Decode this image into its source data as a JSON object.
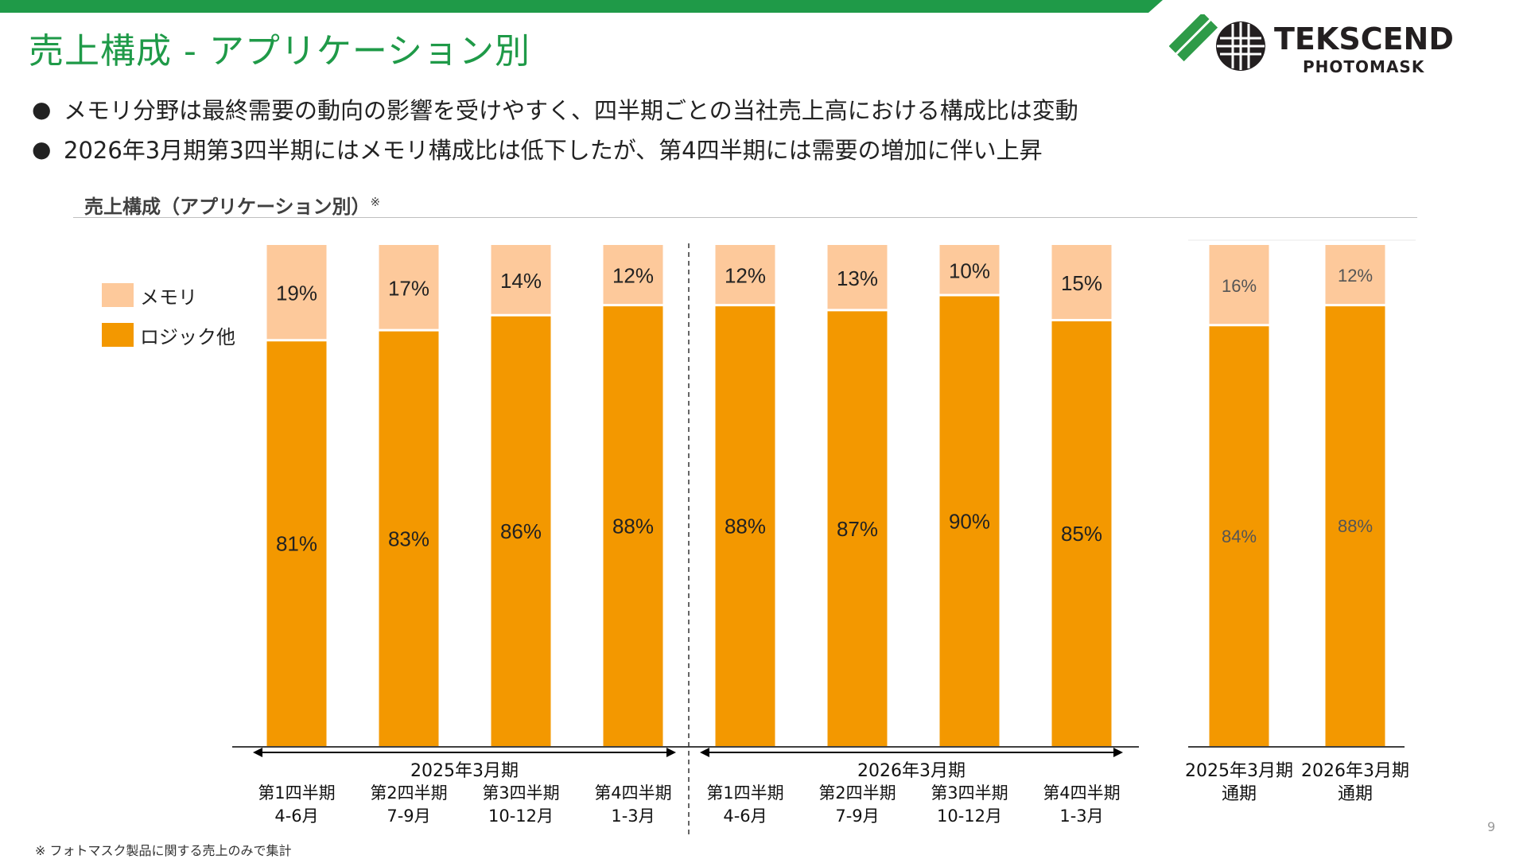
{
  "page": {
    "title": "売上構成 - アプリケーション別",
    "bullets": [
      "メモリ分野は最終需要の動向の影響を受けやすく、四半期ごとの当社売上高における構成比は変動",
      "2026年3月期第3四半期にはメモリ構成比は低下したが、第4四半期には需要の増加に伴い上昇"
    ],
    "chart_heading": "売上構成（アプリケーション別）",
    "chart_heading_mark": "※",
    "footnote": "※ フォトマスク製品に関する売上のみで集計",
    "page_number": "9"
  },
  "logo": {
    "wordmark": "TEKSCEND",
    "submark": "PHOTOMASK",
    "mark_green": "#2e9b48",
    "mark_black": "#231f20"
  },
  "colors": {
    "brand_green": "#1f9a48",
    "memory": "#fdc99b",
    "logic": "#f39800"
  },
  "chart_data": {
    "type": "bar",
    "stacked": true,
    "unit": "%",
    "categories": [
      "第1四半期\n4-6月",
      "第2四半期\n7-9月",
      "第3四半期\n10-12月",
      "第4四半期\n1-3月",
      "第1四半期\n4-6月",
      "第2四半期\n7-9月",
      "第3四半期\n10-12月",
      "第4四半期\n1-3月",
      "2025年3月期\n通期",
      "2026年3月期\n通期"
    ],
    "groups": [
      {
        "label": "2025年3月期",
        "range": [
          0,
          3
        ]
      },
      {
        "label": "2026年3月期",
        "range": [
          4,
          7
        ]
      }
    ],
    "series": [
      {
        "name": "ロジック他",
        "color": "#f39800",
        "values": [
          81,
          83,
          86,
          88,
          88,
          87,
          90,
          85,
          84,
          88
        ]
      },
      {
        "name": "メモリ",
        "color": "#fdc99b",
        "values": [
          19,
          17,
          14,
          12,
          12,
          13,
          10,
          15,
          16,
          12
        ]
      }
    ],
    "ylim": [
      0,
      100
    ],
    "legend_position": "top-left",
    "grid": false
  }
}
